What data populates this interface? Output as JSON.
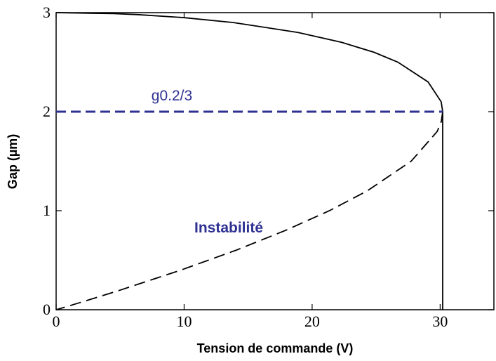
{
  "chart_data": {
    "type": "line",
    "x_label": "Tension de commande (V)",
    "y_label": "Gap (µm)",
    "xlim": [
      0,
      34.2
    ],
    "ylim": [
      0,
      3
    ],
    "xticks": [
      0,
      10,
      20,
      30
    ],
    "yticks": [
      0,
      1,
      2,
      3
    ],
    "annotations": [
      "g0.2/3",
      "Instabilité"
    ],
    "series": [
      {
        "color": "#000000",
        "dash": "solid",
        "x": [
          0,
          4.5,
          6.36,
          9.96,
          13.85,
          18.9,
          22.3,
          24.83,
          26.7,
          29.06,
          30.08,
          30.2,
          30.2
        ],
        "values": [
          3,
          2.99,
          2.98,
          2.95,
          2.9,
          2.8,
          2.7,
          2.6,
          2.5,
          2.3,
          2.1,
          2,
          0
        ]
      },
      {
        "color": "#000000",
        "dash": "dashed",
        "x": [
          30.2,
          30.09,
          29.77,
          27.74,
          24.3,
          21.35,
          17.9,
          14.04,
          9.74,
          5.05,
          2.57,
          1.3,
          0
        ],
        "values": [
          2,
          1.9,
          1.8,
          1.5,
          1.2,
          1,
          0.8,
          0.6,
          0.4,
          0.2,
          0.1,
          0.05,
          0
        ]
      },
      {
        "color": "#2e3192",
        "dash": "dashed",
        "x": [
          0,
          30.2
        ],
        "values": [
          2,
          2
        ]
      }
    ]
  }
}
